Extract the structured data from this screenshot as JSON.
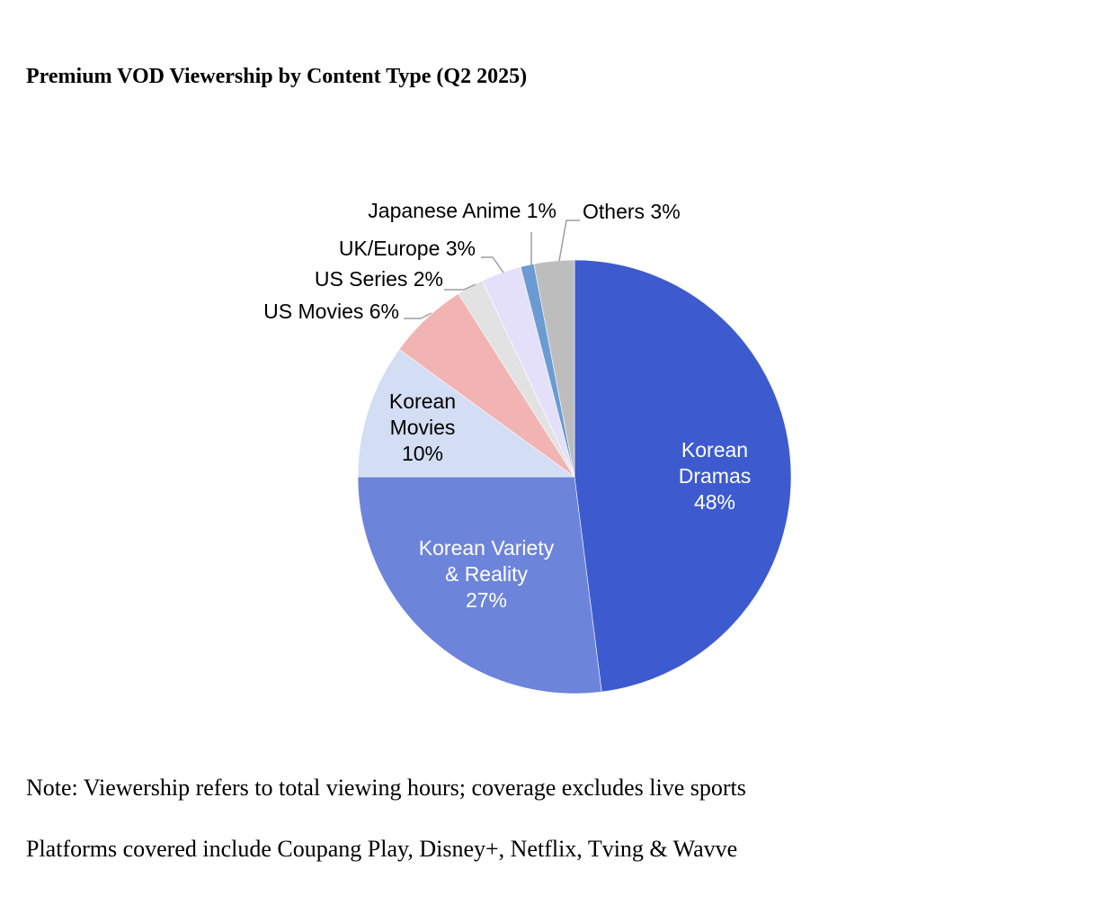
{
  "title": "Premium VOD Viewership by Content Type (Q2 2025)",
  "chart_data": {
    "type": "pie",
    "title": "Premium VOD Viewership by Content Type (Q2 2025)",
    "start_angle_deg": 0,
    "direction": "clockwise",
    "slices": [
      {
        "label": [
          "Korean",
          "Dramas",
          "48%"
        ],
        "value": 48,
        "color": "#3d5bcf",
        "text_color": "#ffffff",
        "label_style": "inside"
      },
      {
        "label": [
          "Korean Variety",
          "& Reality",
          "27%"
        ],
        "value": 27,
        "color": "#6d84db",
        "text_color": "#ffffff",
        "label_style": "inside"
      },
      {
        "label": [
          "Korean",
          "Movies",
          "10%"
        ],
        "value": 10,
        "color": "#d3ddf4",
        "text_color": "#000000",
        "label_style": "inside"
      },
      {
        "label": [
          "US Movies 6%"
        ],
        "value": 6,
        "color": "#f2b3b3",
        "text_color": "#000000",
        "label_style": "callout"
      },
      {
        "label": [
          "US Series 2%"
        ],
        "value": 2,
        "color": "#e2e2e2",
        "text_color": "#000000",
        "label_style": "callout"
      },
      {
        "label": [
          "UK/Europe 3%"
        ],
        "value": 3,
        "color": "#e5e0fa",
        "text_color": "#000000",
        "label_style": "callout"
      },
      {
        "label": [
          "Japanese  Anime 1%"
        ],
        "value": 1,
        "color": "#6b9bd2",
        "text_color": "#000000",
        "label_style": "callout"
      },
      {
        "label": [
          "Others 3%"
        ],
        "value": 3,
        "color": "#bdbdbd",
        "text_color": "#000000",
        "label_style": "callout"
      }
    ]
  },
  "notes": {
    "line1": "Note: Viewership refers to total viewing hours; coverage excludes live sports",
    "line2": "Platforms covered include Coupang Play, Disney+, Netflix, Tving & Wavve"
  }
}
